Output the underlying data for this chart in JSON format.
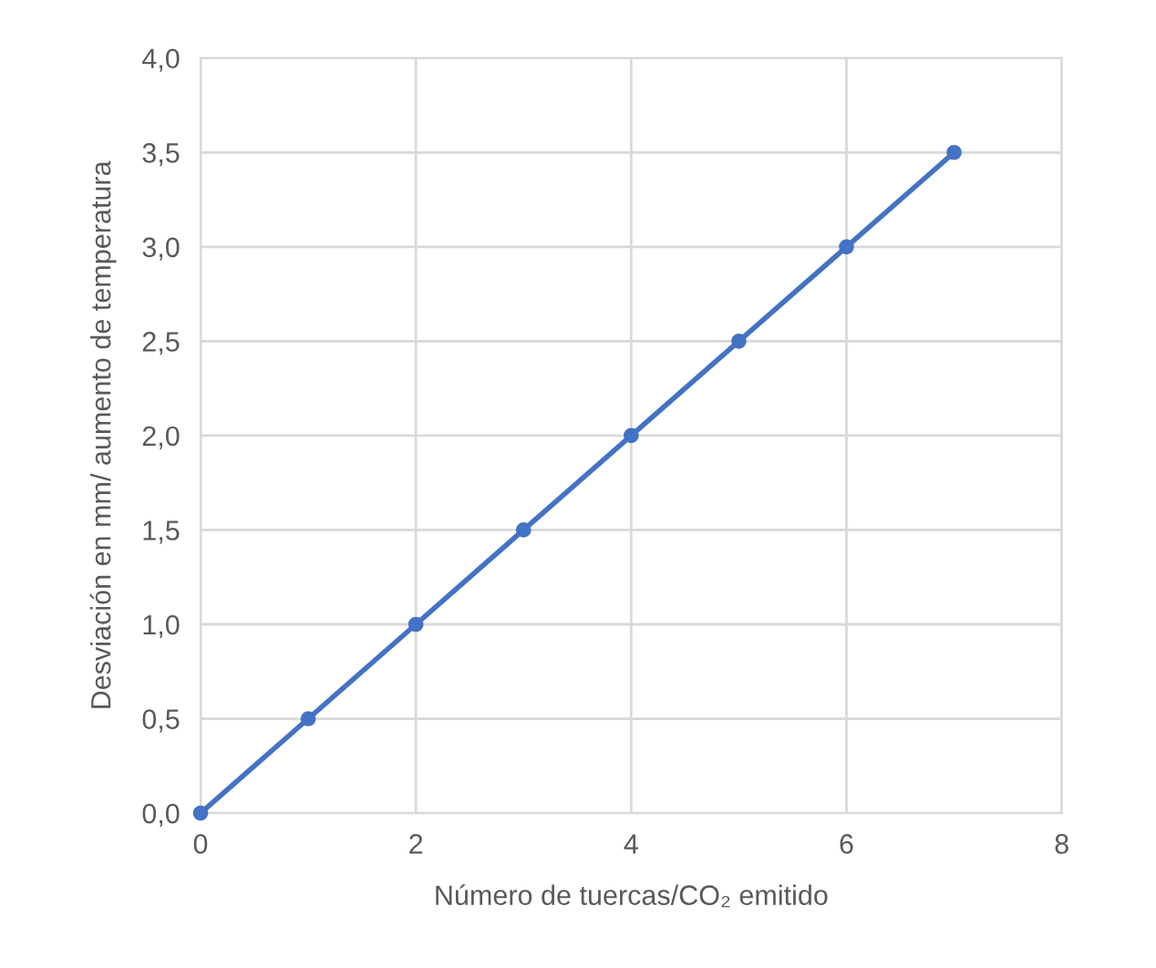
{
  "chart_data": {
    "type": "line",
    "xlabel": "Número de tuercas/CO₂ emitido",
    "ylabel": "Desviación en mm/ aumento de temperatura",
    "x": [
      0,
      1,
      2,
      3,
      4,
      5,
      6,
      7
    ],
    "series": [
      {
        "color": "#4472c4",
        "values": [
          0,
          0.5,
          1,
          1.5,
          2,
          2.5,
          3,
          3.5
        ]
      }
    ],
    "xlim": [
      0,
      8
    ],
    "xticks": [
      0,
      2,
      4,
      6,
      8
    ],
    "ylim": [
      0,
      4
    ],
    "yticks": [
      {
        "value": 0,
        "label": "0,0"
      },
      {
        "value": 0.5,
        "label": "0,5"
      },
      {
        "value": 1,
        "label": "1,0"
      },
      {
        "value": 1.5,
        "label": "1,5"
      },
      {
        "value": 2,
        "label": "2,0"
      },
      {
        "value": 2.5,
        "label": "2,5"
      },
      {
        "value": 3,
        "label": "3,0"
      },
      {
        "value": 3.5,
        "label": "3,5"
      },
      {
        "value": 4,
        "label": "4,0"
      }
    ],
    "grid": true,
    "marker": "circle",
    "line_style": "solid"
  }
}
